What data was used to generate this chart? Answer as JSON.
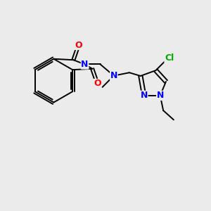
{
  "bg_color": "#ebebeb",
  "bond_color": "#000000",
  "N_color": "#0000ff",
  "O_color": "#ff0000",
  "Cl_color": "#00aa00",
  "figsize": [
    3.0,
    3.0
  ],
  "dpi": 100,
  "xlim": [
    0,
    10
  ],
  "ylim": [
    0,
    10
  ]
}
